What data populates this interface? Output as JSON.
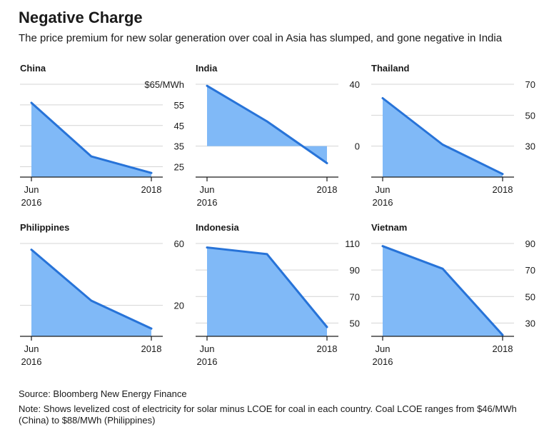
{
  "title": "Negative Charge",
  "subtitle": "The price premium for new solar generation over coal in Asia has slumped, and gone negative in India",
  "source": "Source: Bloomberg New Energy Finance",
  "note": "Note: Shows levelized cost of electricity for solar minus LCOE for coal in each country. Coal LCOE ranges from $46/MWh (China) to $88/MWh (Philippines)",
  "colors": {
    "area": "#80b9f7",
    "line": "#2773d8",
    "grid": "#d4d4d4",
    "axis": "#1a1a1a"
  },
  "chart_data": [
    {
      "type": "area",
      "title": "China",
      "x": [
        "Jun 2016",
        "Mid 2017",
        "2018"
      ],
      "x_tick_labels": [
        [
          "Jun",
          "2016"
        ],
        [
          "2018"
        ]
      ],
      "values": [
        56,
        30,
        22
      ],
      "ylim": [
        20,
        65
      ],
      "yticks": [
        25,
        35,
        45,
        55,
        65
      ],
      "ytick_labels": [
        "25",
        "35",
        "45",
        "55",
        "$65/MWh"
      ],
      "grid": true
    },
    {
      "type": "area",
      "title": "India",
      "x": [
        "Jun 2016",
        "Mid 2017",
        "2018"
      ],
      "x_tick_labels": [
        [
          "Jun",
          "2016"
        ],
        [
          "2018"
        ]
      ],
      "values": [
        39,
        16,
        -11
      ],
      "ylim": [
        -20,
        40
      ],
      "yticks": [
        0,
        40
      ],
      "ytick_labels": [
        "0",
        "40"
      ],
      "grid": true
    },
    {
      "type": "area",
      "title": "Thailand",
      "x": [
        "Jun 2016",
        "Mid 2017",
        "2018"
      ],
      "x_tick_labels": [
        [
          "Jun",
          "2016"
        ],
        [
          "2018"
        ]
      ],
      "values": [
        61,
        31,
        12
      ],
      "ylim": [
        10,
        70
      ],
      "yticks": [
        30,
        50,
        70
      ],
      "ytick_labels": [
        "30",
        "50",
        "70"
      ],
      "grid": true
    },
    {
      "type": "area",
      "title": "Philippines",
      "x": [
        "Jun 2016",
        "Mid 2017",
        "2018"
      ],
      "x_tick_labels": [
        [
          "Jun",
          "2016"
        ],
        [
          "2018"
        ]
      ],
      "values": [
        56,
        23,
        5
      ],
      "ylim": [
        0,
        60
      ],
      "yticks": [
        20,
        60
      ],
      "ytick_labels": [
        "20",
        "60"
      ],
      "grid": true
    },
    {
      "type": "area",
      "title": "Indonesia",
      "x": [
        "Jun 2016",
        "Mid 2017",
        "2018"
      ],
      "x_tick_labels": [
        [
          "Jun",
          "2016"
        ],
        [
          "2018"
        ]
      ],
      "values": [
        107,
        102,
        47
      ],
      "ylim": [
        40,
        110
      ],
      "yticks": [
        50,
        70,
        90,
        110
      ],
      "ytick_labels": [
        "50",
        "70",
        "90",
        "110"
      ],
      "grid": true
    },
    {
      "type": "area",
      "title": "Vietnam",
      "x": [
        "Jun 2016",
        "Mid 2017",
        "2018"
      ],
      "x_tick_labels": [
        [
          "Jun",
          "2016"
        ],
        [
          "2018"
        ]
      ],
      "values": [
        88,
        71,
        21
      ],
      "ylim": [
        20,
        90
      ],
      "yticks": [
        30,
        50,
        70,
        90
      ],
      "ytick_labels": [
        "30",
        "50",
        "70",
        "90"
      ],
      "grid": true
    }
  ]
}
